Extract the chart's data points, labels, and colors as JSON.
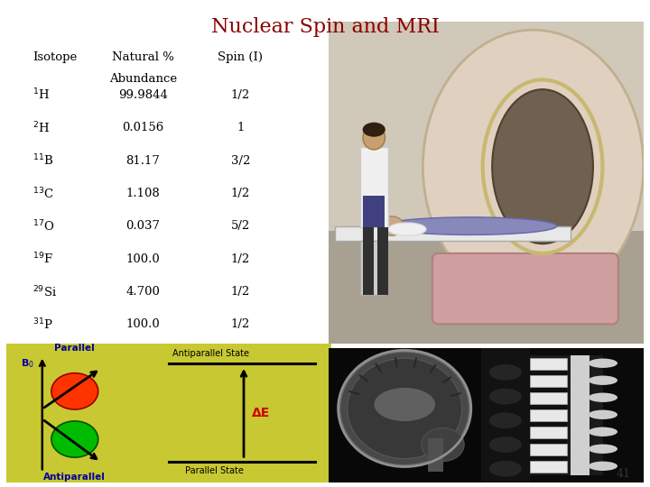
{
  "title": "Nuclear Spin and MRI",
  "title_color": "#8B0000",
  "title_fontsize": 16,
  "background_color": "#ffffff",
  "table": {
    "col_headers": [
      "Isotope",
      "Natural %\nAbundance",
      "Spin (I)"
    ],
    "rows": [
      [
        "$^{1}$H",
        "99.9844",
        "1/2"
      ],
      [
        "$^{2}$H",
        "0.0156",
        "1"
      ],
      [
        "$^{11}$B",
        "81.17",
        "3/2"
      ],
      [
        "$^{13}$C",
        "1.108",
        "1/2"
      ],
      [
        "$^{17}$O",
        "0.037",
        "5/2"
      ],
      [
        "$^{19}$F",
        "100.0",
        "1/2"
      ],
      [
        "$^{29}$Si",
        "4.700",
        "1/2"
      ],
      [
        "$^{31}$P",
        "100.0",
        "1/2"
      ]
    ]
  },
  "diagram": {
    "bg_color": "#c8c832",
    "orange_circle_color": "#ff3300",
    "green_circle_color": "#00bb00",
    "text_color_blue": "#000099",
    "text_color_red": "#cc0000",
    "b0_label": "B$_0$",
    "parallel_label": "Parallel",
    "antiparallel_label": "Antiparallel",
    "antiparallel_state_label": "Antiparallel State",
    "parallel_state_label": "Parallel State",
    "delta_e_label": "ΔE"
  },
  "page_number": "41"
}
